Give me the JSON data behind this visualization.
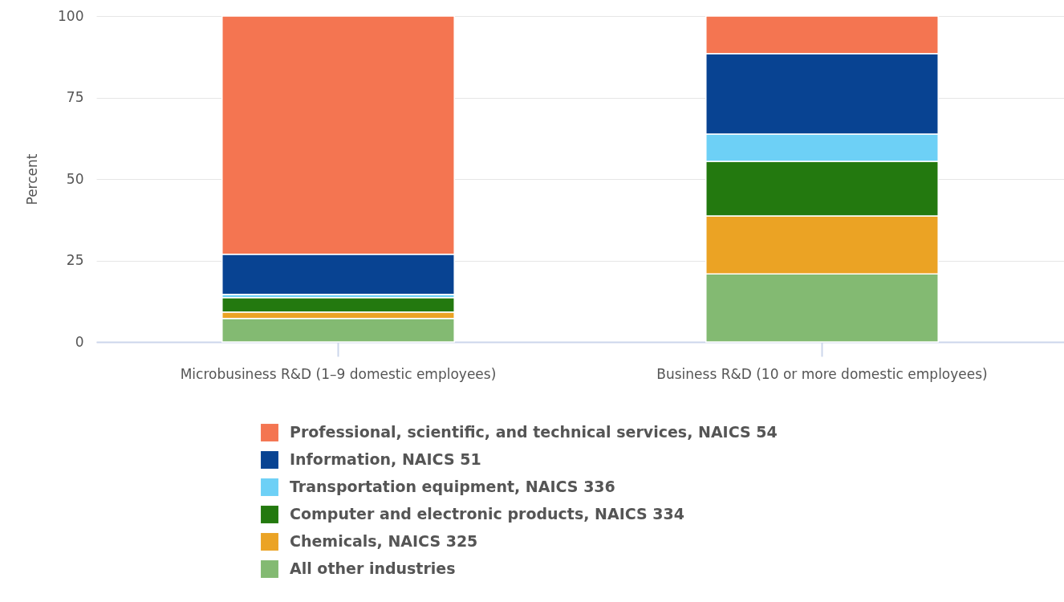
{
  "chart_data": {
    "type": "bar",
    "stacked": true,
    "ylabel": "Percent",
    "categories": [
      "Microbusiness R&D (1–9 domestic employees)",
      "Business R&D (10 or more domestic employees)"
    ],
    "series": [
      {
        "name": "All other industries",
        "color": "#83ba72",
        "values": [
          7.2,
          20.9
        ]
      },
      {
        "name": "Chemicals, NAICS 325",
        "color": "#eba324",
        "values": [
          2.0,
          17.8
        ]
      },
      {
        "name": "Computer and electronic products, NAICS 334",
        "color": "#23790f",
        "values": [
          4.4,
          16.7
        ]
      },
      {
        "name": "Transportation equipment, NAICS 336",
        "color": "#6dd0f6",
        "values": [
          1.0,
          8.4
        ]
      },
      {
        "name": "Information, NAICS 51",
        "color": "#084392",
        "values": [
          12.3,
          24.7
        ]
      },
      {
        "name": "Professional, scientific, and technical services, NAICS 54",
        "color": "#f47551",
        "values": [
          73.1,
          11.5
        ]
      }
    ],
    "ylim": [
      0,
      100
    ],
    "yticks": [
      0,
      25,
      50,
      75,
      100
    ],
    "grid": "y",
    "legend": "bottom"
  }
}
